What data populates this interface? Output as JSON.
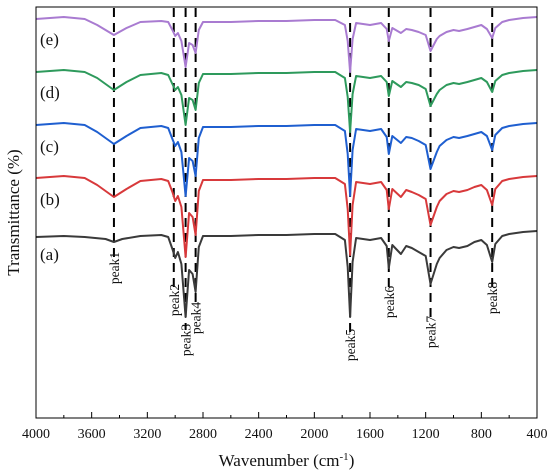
{
  "chart_data": {
    "type": "line",
    "title": "",
    "xlabel": "Wavenumber (cm",
    "xlabel_sup": "-1",
    "xlabel_close": ")",
    "ylabel": "Transmittance (%)",
    "xlim": [
      4000,
      400
    ],
    "x_reversed": true,
    "xticks": [
      "4000",
      "3600",
      "3200",
      "2800",
      "2400",
      "2000",
      "1600",
      "1200",
      "800",
      "400"
    ],
    "y_tick_labels_shown": false,
    "grid": false,
    "legend": "none",
    "curve_labels_position": "left, on each curve",
    "offset_stacked": true,
    "series": [
      {
        "label": "(a)",
        "color": "#3a3a3a",
        "baseline": 0,
        "points": [
          [
            4000,
            5
          ],
          [
            3800,
            6
          ],
          [
            3650,
            5
          ],
          [
            3500,
            3
          ],
          [
            3440,
            0
          ],
          [
            3380,
            3
          ],
          [
            3250,
            6
          ],
          [
            3100,
            7
          ],
          [
            3050,
            5
          ],
          [
            3020,
            -7
          ],
          [
            3000,
            -16
          ],
          [
            2980,
            -10
          ],
          [
            2955,
            -22
          ],
          [
            2925,
            -75
          ],
          [
            2900,
            -28
          ],
          [
            2875,
            -32
          ],
          [
            2853,
            -50
          ],
          [
            2830,
            -5
          ],
          [
            2800,
            6
          ],
          [
            2600,
            6
          ],
          [
            2400,
            7
          ],
          [
            2200,
            7
          ],
          [
            2000,
            8
          ],
          [
            1850,
            8
          ],
          [
            1780,
            2
          ],
          [
            1760,
            -25
          ],
          [
            1743,
            -75
          ],
          [
            1725,
            -20
          ],
          [
            1700,
            4
          ],
          [
            1600,
            2
          ],
          [
            1520,
            4
          ],
          [
            1480,
            -4
          ],
          [
            1465,
            -26
          ],
          [
            1440,
            -3
          ],
          [
            1378,
            -12
          ],
          [
            1340,
            -4
          ],
          [
            1300,
            -6
          ],
          [
            1250,
            -10
          ],
          [
            1200,
            -14
          ],
          [
            1165,
            -42
          ],
          [
            1120,
            -22
          ],
          [
            1100,
            -16
          ],
          [
            1050,
            -8
          ],
          [
            1000,
            -5
          ],
          [
            960,
            -6
          ],
          [
            900,
            -4
          ],
          [
            850,
            0
          ],
          [
            800,
            2
          ],
          [
            760,
            -3
          ],
          [
            722,
            -20
          ],
          [
            700,
            -2
          ],
          [
            650,
            6
          ],
          [
            600,
            8
          ],
          [
            500,
            10
          ],
          [
            400,
            11
          ]
        ]
      },
      {
        "label": "(b)",
        "color": "#d8393b",
        "baseline": 55,
        "points": [
          [
            4000,
            9
          ],
          [
            3800,
            11
          ],
          [
            3650,
            9
          ],
          [
            3560,
            2
          ],
          [
            3440,
            -10
          ],
          [
            3350,
            -2
          ],
          [
            3250,
            6
          ],
          [
            3100,
            8
          ],
          [
            3050,
            6
          ],
          [
            3020,
            -5
          ],
          [
            3000,
            -14
          ],
          [
            2980,
            -9
          ],
          [
            2955,
            -20
          ],
          [
            2925,
            -70
          ],
          [
            2900,
            -26
          ],
          [
            2875,
            -30
          ],
          [
            2853,
            -48
          ],
          [
            2830,
            -4
          ],
          [
            2800,
            7
          ],
          [
            2600,
            7
          ],
          [
            2400,
            8
          ],
          [
            2200,
            8
          ],
          [
            2000,
            9
          ],
          [
            1850,
            9
          ],
          [
            1780,
            3
          ],
          [
            1760,
            -22
          ],
          [
            1743,
            -68
          ],
          [
            1725,
            -18
          ],
          [
            1700,
            5
          ],
          [
            1600,
            3
          ],
          [
            1520,
            5
          ],
          [
            1480,
            -3
          ],
          [
            1465,
            -22
          ],
          [
            1440,
            -2
          ],
          [
            1378,
            -10
          ],
          [
            1340,
            -3
          ],
          [
            1300,
            -5
          ],
          [
            1250,
            -8
          ],
          [
            1200,
            -12
          ],
          [
            1165,
            -38
          ],
          [
            1120,
            -20
          ],
          [
            1100,
            -14
          ],
          [
            1050,
            -7
          ],
          [
            1000,
            -4
          ],
          [
            960,
            -5
          ],
          [
            900,
            -3
          ],
          [
            850,
            0
          ],
          [
            800,
            2
          ],
          [
            760,
            -3
          ],
          [
            722,
            -18
          ],
          [
            700,
            -2
          ],
          [
            650,
            6
          ],
          [
            600,
            8
          ],
          [
            500,
            10
          ],
          [
            400,
            11
          ]
        ]
      },
      {
        "label": "(c)",
        "color": "#1f5fd0",
        "baseline": 108,
        "points": [
          [
            4000,
            9
          ],
          [
            3800,
            11
          ],
          [
            3650,
            9
          ],
          [
            3560,
            2
          ],
          [
            3440,
            -10
          ],
          [
            3350,
            -2
          ],
          [
            3250,
            6
          ],
          [
            3100,
            8
          ],
          [
            3050,
            6
          ],
          [
            3020,
            -5
          ],
          [
            3000,
            -12
          ],
          [
            2980,
            -8
          ],
          [
            2955,
            -18
          ],
          [
            2925,
            -62
          ],
          [
            2900,
            -24
          ],
          [
            2875,
            -27
          ],
          [
            2853,
            -42
          ],
          [
            2830,
            -4
          ],
          [
            2800,
            7
          ],
          [
            2600,
            7
          ],
          [
            2400,
            8
          ],
          [
            2200,
            8
          ],
          [
            2000,
            9
          ],
          [
            1850,
            9
          ],
          [
            1780,
            3
          ],
          [
            1760,
            -20
          ],
          [
            1743,
            -62
          ],
          [
            1725,
            -16
          ],
          [
            1700,
            5
          ],
          [
            1600,
            3
          ],
          [
            1520,
            5
          ],
          [
            1480,
            -3
          ],
          [
            1465,
            -20
          ],
          [
            1440,
            -2
          ],
          [
            1378,
            -9
          ],
          [
            1340,
            -3
          ],
          [
            1300,
            -4
          ],
          [
            1250,
            -7
          ],
          [
            1200,
            -11
          ],
          [
            1165,
            -35
          ],
          [
            1120,
            -18
          ],
          [
            1100,
            -12
          ],
          [
            1050,
            -6
          ],
          [
            1000,
            -3
          ],
          [
            960,
            -4
          ],
          [
            900,
            -2
          ],
          [
            850,
            0
          ],
          [
            800,
            2
          ],
          [
            760,
            -2
          ],
          [
            722,
            -16
          ],
          [
            700,
            -1
          ],
          [
            650,
            6
          ],
          [
            600,
            8
          ],
          [
            500,
            10
          ],
          [
            400,
            11
          ]
        ]
      },
      {
        "label": "(d)",
        "color": "#2e9a5c",
        "baseline": 162,
        "points": [
          [
            4000,
            8
          ],
          [
            3800,
            10
          ],
          [
            3650,
            8
          ],
          [
            3560,
            2
          ],
          [
            3440,
            -10
          ],
          [
            3350,
            -2
          ],
          [
            3250,
            5
          ],
          [
            3100,
            7
          ],
          [
            3050,
            5
          ],
          [
            3020,
            -4
          ],
          [
            3000,
            -10
          ],
          [
            2980,
            -7
          ],
          [
            2955,
            -15
          ],
          [
            2925,
            -45
          ],
          [
            2900,
            -18
          ],
          [
            2875,
            -20
          ],
          [
            2853,
            -30
          ],
          [
            2830,
            -3
          ],
          [
            2800,
            6
          ],
          [
            2600,
            6
          ],
          [
            2400,
            7
          ],
          [
            2200,
            7
          ],
          [
            2000,
            8
          ],
          [
            1850,
            8
          ],
          [
            1780,
            2
          ],
          [
            1760,
            -17
          ],
          [
            1743,
            -52
          ],
          [
            1725,
            -14
          ],
          [
            1700,
            4
          ],
          [
            1600,
            2
          ],
          [
            1520,
            4
          ],
          [
            1480,
            -2
          ],
          [
            1465,
            -16
          ],
          [
            1440,
            -1
          ],
          [
            1378,
            -7
          ],
          [
            1340,
            -2
          ],
          [
            1300,
            -3
          ],
          [
            1250,
            -5
          ],
          [
            1200,
            -9
          ],
          [
            1165,
            -26
          ],
          [
            1120,
            -14
          ],
          [
            1100,
            -10
          ],
          [
            1050,
            -5
          ],
          [
            1000,
            -3
          ],
          [
            960,
            -4
          ],
          [
            900,
            -2
          ],
          [
            850,
            0
          ],
          [
            800,
            2
          ],
          [
            760,
            -2
          ],
          [
            722,
            -12
          ],
          [
            700,
            -1
          ],
          [
            650,
            5
          ],
          [
            600,
            7
          ],
          [
            500,
            9
          ],
          [
            400,
            10
          ]
        ]
      },
      {
        "label": "(e)",
        "color": "#a97bd1",
        "baseline": 215,
        "points": [
          [
            4000,
            8
          ],
          [
            3800,
            10
          ],
          [
            3650,
            8
          ],
          [
            3560,
            2
          ],
          [
            3440,
            -8
          ],
          [
            3350,
            -1
          ],
          [
            3250,
            5
          ],
          [
            3100,
            6
          ],
          [
            3050,
            5
          ],
          [
            3020,
            -3
          ],
          [
            3000,
            -9
          ],
          [
            2980,
            -6
          ],
          [
            2955,
            -14
          ],
          [
            2925,
            -40
          ],
          [
            2900,
            -16
          ],
          [
            2875,
            -18
          ],
          [
            2853,
            -26
          ],
          [
            2830,
            -3
          ],
          [
            2800,
            5
          ],
          [
            2600,
            5
          ],
          [
            2400,
            6
          ],
          [
            2200,
            6
          ],
          [
            2000,
            7
          ],
          [
            1850,
            7
          ],
          [
            1780,
            2
          ],
          [
            1760,
            -14
          ],
          [
            1743,
            -45
          ],
          [
            1725,
            -12
          ],
          [
            1700,
            4
          ],
          [
            1600,
            2
          ],
          [
            1520,
            4
          ],
          [
            1480,
            -2
          ],
          [
            1465,
            -14
          ],
          [
            1440,
            -1
          ],
          [
            1378,
            -6
          ],
          [
            1340,
            -2
          ],
          [
            1300,
            -3
          ],
          [
            1250,
            -5
          ],
          [
            1200,
            -8
          ],
          [
            1165,
            -24
          ],
          [
            1120,
            -12
          ],
          [
            1100,
            -9
          ],
          [
            1050,
            -5
          ],
          [
            1000,
            -3
          ],
          [
            960,
            -4
          ],
          [
            900,
            -2
          ],
          [
            850,
            0
          ],
          [
            800,
            2
          ],
          [
            760,
            -2
          ],
          [
            722,
            -11
          ],
          [
            700,
            -1
          ],
          [
            650,
            5
          ],
          [
            600,
            7
          ],
          [
            500,
            9
          ],
          [
            400,
            10
          ]
        ]
      }
    ],
    "peak_markers": [
      {
        "label": "peak1",
        "x": 3440
      },
      {
        "label": "peak2",
        "x": 3010
      },
      {
        "label": "peak3",
        "x": 2925
      },
      {
        "label": "peak4",
        "x": 2853
      },
      {
        "label": "peak5",
        "x": 1743
      },
      {
        "label": "peak6",
        "x": 1465
      },
      {
        "label": "peak7",
        "x": 1165
      },
      {
        "label": "peak8",
        "x": 722
      }
    ],
    "marker_line_color": "#000000",
    "marker_line_style": "dashed"
  }
}
